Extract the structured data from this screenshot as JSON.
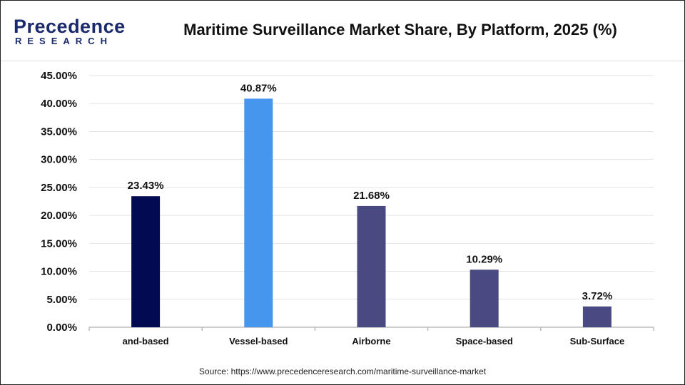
{
  "header": {
    "logo_main": "Precedence",
    "logo_sub": "RESEARCH",
    "title": "Maritime Surveillance Market Share, By Platform, 2025 (%)"
  },
  "source": "Source: https://www.precedenceresearch.com/maritime-surveillance-market",
  "chart_data": {
    "type": "bar",
    "title": "Maritime Surveillance Market Share, By Platform, 2025 (%)",
    "categories": [
      "and-based",
      "Vessel-based",
      "Airborne",
      "Space-based",
      "Sub-Surface"
    ],
    "values": [
      23.43,
      40.87,
      21.68,
      10.29,
      3.72
    ],
    "data_labels": [
      "23.43%",
      "40.87%",
      "21.68%",
      "10.29%",
      "3.72%"
    ],
    "colors": [
      "#020b52",
      "#4696ee",
      "#4a4a82",
      "#4a4a82",
      "#4a4a82"
    ],
    "ylim": [
      0,
      45
    ],
    "yticks": [
      "0.00%",
      "5.00%",
      "10.00%",
      "15.00%",
      "20.00%",
      "25.00%",
      "30.00%",
      "35.00%",
      "40.00%",
      "45.00%"
    ],
    "grid": true,
    "xlabel": "",
    "ylabel": ""
  }
}
